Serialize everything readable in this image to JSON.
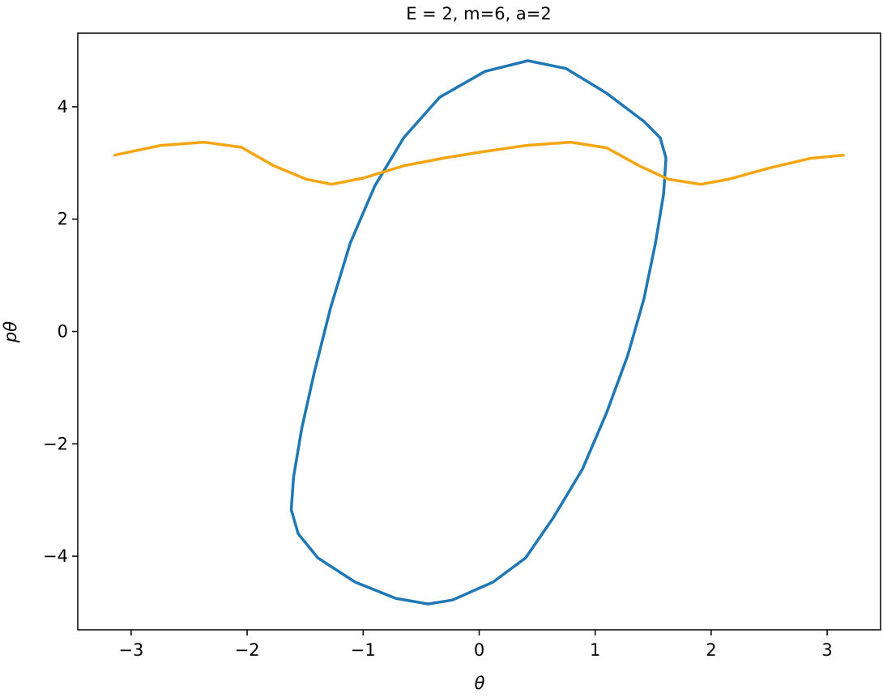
{
  "chart_data": {
    "type": "line",
    "title": "E = 2, m=6, a=2",
    "xlabel": "θ",
    "ylabel": "pθ",
    "xlim": [
      -3.46,
      3.46
    ],
    "ylim": [
      -5.31,
      5.31
    ],
    "xticks": [
      {
        "value": -3,
        "label": "−3"
      },
      {
        "value": -2,
        "label": "−2"
      },
      {
        "value": -1,
        "label": "−1"
      },
      0,
      1,
      2,
      3
    ],
    "yticks": [
      {
        "value": -4,
        "label": "−4"
      },
      {
        "value": -2,
        "label": "−2"
      },
      0,
      2,
      4
    ],
    "series": [
      {
        "color": "#1f77b4",
        "x": [
          0.42,
          0.75,
          1.1,
          1.42,
          1.56,
          1.61,
          1.59,
          1.52,
          1.42,
          1.28,
          1.1,
          0.89,
          0.64,
          0.4,
          0.12,
          -0.23,
          -0.44,
          -0.72,
          -1.07,
          -1.39,
          -1.56,
          -1.62,
          -1.6,
          -1.53,
          -1.42,
          -1.28,
          -1.11,
          -0.9,
          -0.65,
          -0.34,
          0.05,
          0.42
        ],
        "values": [
          4.82,
          4.68,
          4.24,
          3.74,
          3.45,
          3.09,
          2.45,
          1.58,
          0.58,
          -0.43,
          -1.44,
          -2.45,
          -3.31,
          -4.03,
          -4.46,
          -4.78,
          -4.85,
          -4.75,
          -4.46,
          -4.03,
          -3.6,
          -3.17,
          -2.59,
          -1.73,
          -0.72,
          0.43,
          1.58,
          2.59,
          3.45,
          4.17,
          4.63,
          4.82
        ]
      },
      {
        "color": "#f5a511",
        "x": [
          -3.14,
          -2.75,
          -2.37,
          -2.05,
          -1.77,
          -1.49,
          -1.27,
          -1.0,
          -0.65,
          -0.3,
          0,
          0.4,
          0.79,
          1.1,
          1.38,
          1.63,
          1.91,
          2.15,
          2.5,
          2.85,
          3.14
        ],
        "values": [
          3.14,
          3.31,
          3.37,
          3.28,
          2.95,
          2.71,
          2.62,
          2.73,
          2.95,
          3.09,
          3.19,
          3.31,
          3.37,
          3.27,
          2.95,
          2.71,
          2.62,
          2.71,
          2.91,
          3.08,
          3.14
        ]
      }
    ]
  }
}
